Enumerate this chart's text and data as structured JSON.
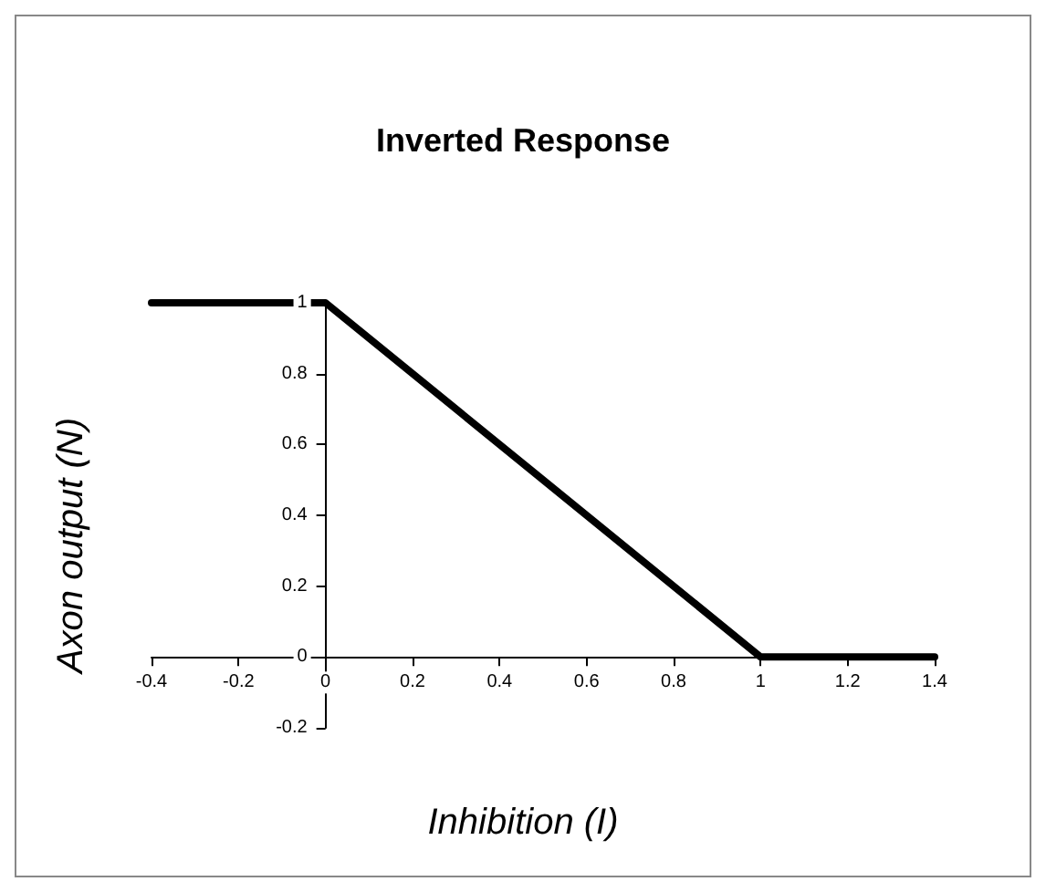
{
  "chart_data": {
    "type": "line",
    "title": "Inverted Response",
    "xlabel": "Inhibition (I)",
    "ylabel": "Axon output (N)",
    "x": [
      -0.4,
      0,
      1,
      1.4
    ],
    "series": [
      {
        "color": "#000000",
        "values": [
          1,
          1,
          0,
          0
        ]
      }
    ],
    "xlim": [
      -0.4,
      1.4
    ],
    "xticks": [
      -0.4,
      -0.2,
      0,
      0.2,
      0.4,
      0.6,
      0.8,
      1,
      1.2,
      1.4
    ],
    "ylim": [
      -0.2,
      1
    ],
    "yticks": [
      -0.2,
      0,
      0.2,
      0.4,
      0.6,
      0.8,
      1
    ],
    "marker": "none",
    "line_style": "solid"
  }
}
